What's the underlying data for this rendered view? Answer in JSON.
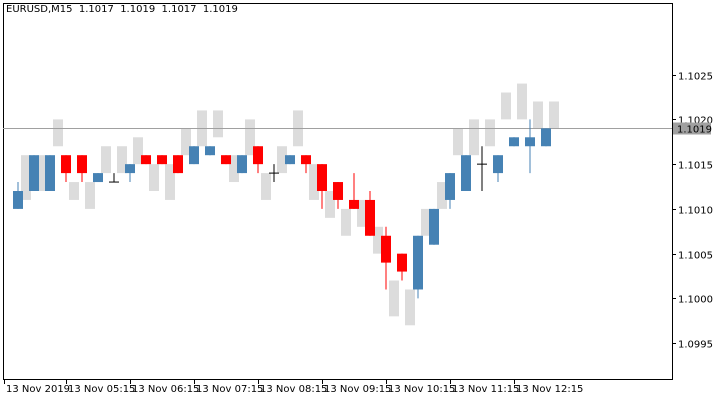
{
  "window": {
    "symbol": "EURUSD,M15",
    "ohlc": "1.1017  1.1019  1.1017  1.1019"
  },
  "price_axis": {
    "labels": [
      "1.1025",
      "1.1020",
      "1.1015",
      "1.1010",
      "1.1005",
      "1.1000",
      "1.0995"
    ],
    "current_price_label": "1.1019"
  },
  "time_axis": {
    "labels": [
      "13 Nov 2019",
      "13 Nov 05:15",
      "13 Nov 06:15",
      "13 Nov 07:15",
      "13 Nov 08:15",
      "13 Nov 09:15",
      "13 Nov 10:15",
      "13 Nov 11:15",
      "13 Nov 12:15"
    ]
  },
  "colors": {
    "bull": "#4682b4",
    "bear": "#ff0000",
    "shadow": "#dcdcdc",
    "doji": "#000000",
    "price_line": "#a0a0a0",
    "price_tag_bg": "#a0a0a0",
    "price_tag_text": "#ffffff"
  },
  "chart_data": {
    "type": "candlestick",
    "ylim": [
      1.0991,
      1.1033
    ],
    "current_price": 1.1019,
    "candles": [
      {
        "bull": true,
        "open": 1.101,
        "close": 1.1012,
        "high": 1.1013,
        "low": 1.101,
        "shadow_top": 1.1016,
        "shadow_bottom": 1.1011
      },
      {
        "bull": true,
        "open": 1.1012,
        "close": 1.1016,
        "high": 1.1016,
        "low": 1.1012,
        "shadow_top": 1.1016,
        "shadow_bottom": 1.1012
      },
      {
        "bull": true,
        "open": 1.1012,
        "close": 1.1016,
        "high": 1.1016,
        "low": 1.1012,
        "shadow_top": 1.102,
        "shadow_bottom": 1.1017
      },
      {
        "bull": false,
        "open": 1.1016,
        "close": 1.1014,
        "high": 1.1016,
        "low": 1.1013,
        "shadow_top": 1.1013,
        "shadow_bottom": 1.1011
      },
      {
        "bull": false,
        "open": 1.1016,
        "close": 1.1014,
        "high": 1.1016,
        "low": 1.1013,
        "shadow_top": 1.1013,
        "shadow_bottom": 1.101
      },
      {
        "bull": true,
        "open": 1.1013,
        "close": 1.1014,
        "high": 1.1014,
        "low": 1.1013,
        "shadow_top": 1.1017,
        "shadow_bottom": 1.1014
      },
      {
        "bull": false,
        "open": 1.1013,
        "close": 1.1013,
        "high": 1.1014,
        "low": 1.1013,
        "shadow_top": 1.1017,
        "shadow_bottom": 1.1014
      },
      {
        "bull": true,
        "open": 1.1014,
        "close": 1.1015,
        "high": 1.1015,
        "low": 1.1013,
        "shadow_top": 1.1018,
        "shadow_bottom": 1.1015
      },
      {
        "bull": false,
        "open": 1.1016,
        "close": 1.1015,
        "high": 1.1016,
        "low": 1.1015,
        "shadow_top": 1.1015,
        "shadow_bottom": 1.1012
      },
      {
        "bull": false,
        "open": 1.1016,
        "close": 1.1015,
        "high": 1.1016,
        "low": 1.1015,
        "shadow_top": 1.1015,
        "shadow_bottom": 1.1011
      },
      {
        "bull": false,
        "open": 1.1016,
        "close": 1.1014,
        "high": 1.1016,
        "low": 1.1014,
        "shadow_top": 1.1019,
        "shadow_bottom": 1.1016
      },
      {
        "bull": true,
        "open": 1.1015,
        "close": 1.1017,
        "high": 1.1017,
        "low": 1.1015,
        "shadow_top": 1.1021,
        "shadow_bottom": 1.1017
      },
      {
        "bull": true,
        "open": 1.1016,
        "close": 1.1017,
        "high": 1.1017,
        "low": 1.1016,
        "shadow_top": 1.1021,
        "shadow_bottom": 1.1018
      },
      {
        "bull": false,
        "open": 1.1016,
        "close": 1.1015,
        "high": 1.1016,
        "low": 1.1015,
        "shadow_top": 1.1016,
        "shadow_bottom": 1.1013
      },
      {
        "bull": true,
        "open": 1.1014,
        "close": 1.1016,
        "high": 1.1016,
        "low": 1.1014,
        "shadow_top": 1.102,
        "shadow_bottom": 1.1016
      },
      {
        "bull": false,
        "open": 1.1017,
        "close": 1.1015,
        "high": 1.1017,
        "low": 1.1014,
        "shadow_top": 1.1014,
        "shadow_bottom": 1.1011
      },
      {
        "bull": false,
        "open": 1.1014,
        "close": 1.1014,
        "high": 1.1015,
        "low": 1.1013,
        "shadow_top": 1.1017,
        "shadow_bottom": 1.1014
      },
      {
        "bull": true,
        "open": 1.1015,
        "close": 1.1016,
        "high": 1.1016,
        "low": 1.1015,
        "shadow_top": 1.1021,
        "shadow_bottom": 1.1017
      },
      {
        "bull": false,
        "open": 1.1016,
        "close": 1.1015,
        "high": 1.1016,
        "low": 1.1014,
        "shadow_top": 1.1015,
        "shadow_bottom": 1.1011
      },
      {
        "bull": false,
        "open": 1.1015,
        "close": 1.1012,
        "high": 1.1015,
        "low": 1.101,
        "shadow_top": 1.1012,
        "shadow_bottom": 1.1009
      },
      {
        "bull": false,
        "open": 1.1013,
        "close": 1.1011,
        "high": 1.1013,
        "low": 1.101,
        "shadow_top": 1.101,
        "shadow_bottom": 1.1007
      },
      {
        "bull": false,
        "open": 1.1011,
        "close": 1.101,
        "high": 1.1014,
        "low": 1.101,
        "shadow_top": 1.1011,
        "shadow_bottom": 1.1008
      },
      {
        "bull": false,
        "open": 1.1011,
        "close": 1.1007,
        "high": 1.1012,
        "low": 1.1007,
        "shadow_top": 1.1008,
        "shadow_bottom": 1.1005
      },
      {
        "bull": false,
        "open": 1.1007,
        "close": 1.1004,
        "high": 1.1008,
        "low": 1.1001,
        "shadow_top": 1.1002,
        "shadow_bottom": 1.0998
      },
      {
        "bull": false,
        "open": 1.1005,
        "close": 1.1003,
        "high": 1.1005,
        "low": 1.1002,
        "shadow_top": 1.1001,
        "shadow_bottom": 1.0997
      },
      {
        "bull": true,
        "open": 1.1001,
        "close": 1.1007,
        "high": 1.1007,
        "low": 1.1,
        "shadow_top": 1.101,
        "shadow_bottom": 1.1007
      },
      {
        "bull": true,
        "open": 1.1006,
        "close": 1.101,
        "high": 1.101,
        "low": 1.1006,
        "shadow_top": 1.1013,
        "shadow_bottom": 1.101
      },
      {
        "bull": true,
        "open": 1.1011,
        "close": 1.1014,
        "high": 1.1014,
        "low": 1.101,
        "shadow_top": 1.1019,
        "shadow_bottom": 1.1016
      },
      {
        "bull": true,
        "open": 1.1012,
        "close": 1.1016,
        "high": 1.1016,
        "low": 1.1012,
        "shadow_top": 1.102,
        "shadow_bottom": 1.1016
      },
      {
        "bull": false,
        "open": 1.1015,
        "close": 1.1015,
        "high": 1.1017,
        "low": 1.1012,
        "shadow_top": 1.102,
        "shadow_bottom": 1.1017
      },
      {
        "bull": true,
        "open": 1.1014,
        "close": 1.1016,
        "high": 1.1016,
        "low": 1.1013,
        "shadow_top": 1.1023,
        "shadow_bottom": 1.102
      },
      {
        "bull": true,
        "open": 1.1017,
        "close": 1.1018,
        "high": 1.1018,
        "low": 1.1017,
        "shadow_top": 1.1024,
        "shadow_bottom": 1.102
      },
      {
        "bull": true,
        "open": 1.1017,
        "close": 1.1018,
        "high": 1.102,
        "low": 1.1014,
        "shadow_top": 1.1022,
        "shadow_bottom": 1.1019
      },
      {
        "bull": true,
        "open": 1.1017,
        "close": 1.1019,
        "high": 1.1019,
        "low": 1.1017,
        "shadow_top": 1.1022,
        "shadow_bottom": 1.1019
      }
    ]
  }
}
